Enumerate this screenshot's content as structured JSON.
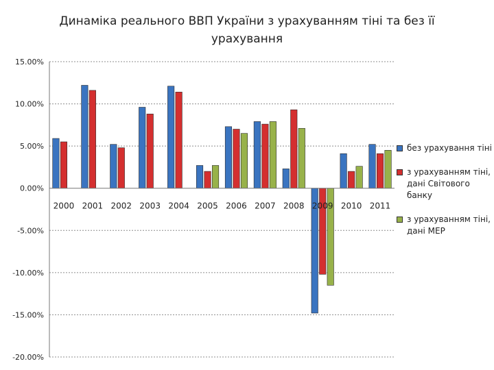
{
  "title_lines": [
    "Динаміка реального ВВП України з урахуванням тіні та без її",
    "урахування"
  ],
  "colors": {
    "series": [
      "#3a74c0",
      "#d42f2f",
      "#98b24a"
    ],
    "grid": "#8c8c8c",
    "axis": "#777777",
    "text": "#222222"
  },
  "chart_data": {
    "type": "bar",
    "title": "Динаміка реального ВВП України з урахуванням тіні та без її урахування",
    "categories": [
      "2000",
      "2001",
      "2002",
      "2003",
      "2004",
      "2005",
      "2006",
      "2007",
      "2008",
      "2009",
      "2010",
      "2011"
    ],
    "series": [
      {
        "name": "без урахування тіні",
        "values": [
          5.9,
          12.2,
          5.2,
          9.6,
          12.1,
          2.7,
          7.3,
          7.9,
          2.3,
          -14.8,
          4.1,
          5.2
        ]
      },
      {
        "name": "з урахуванням тіні, дані Світового банку",
        "values": [
          5.5,
          11.6,
          4.8,
          8.8,
          11.4,
          2.0,
          7.0,
          7.6,
          9.3,
          -10.2,
          2.0,
          4.1
        ]
      },
      {
        "name": "з урахуванням тіні, дані МЕР",
        "values": [
          null,
          null,
          null,
          null,
          null,
          2.7,
          6.5,
          7.9,
          7.1,
          -11.5,
          2.6,
          4.5
        ]
      }
    ],
    "ytick_labels": [
      "15.00%",
      "10.00%",
      "5.00%",
      "0.00%",
      "-5.00%",
      "-10.00%",
      "-15.00%",
      "-20.00%"
    ],
    "ytick_values": [
      15,
      10,
      5,
      0,
      -5,
      -10,
      -15,
      -20
    ],
    "ylim": [
      -20,
      15
    ],
    "xlabel": "",
    "ylabel": "",
    "grid": true,
    "legend_position": "right"
  }
}
